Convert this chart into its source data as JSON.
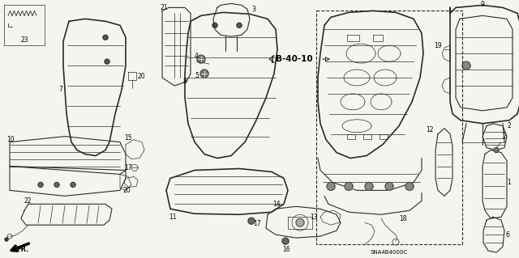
{
  "bg_color": "#f5f5f0",
  "fig_width": 6.4,
  "fig_height": 3.19,
  "dpi": 100,
  "diagram_code": "SNA4B4000C",
  "ref_code": "B-40-10",
  "line_color": "#2a2a2a",
  "label_fontsize": 6.0
}
